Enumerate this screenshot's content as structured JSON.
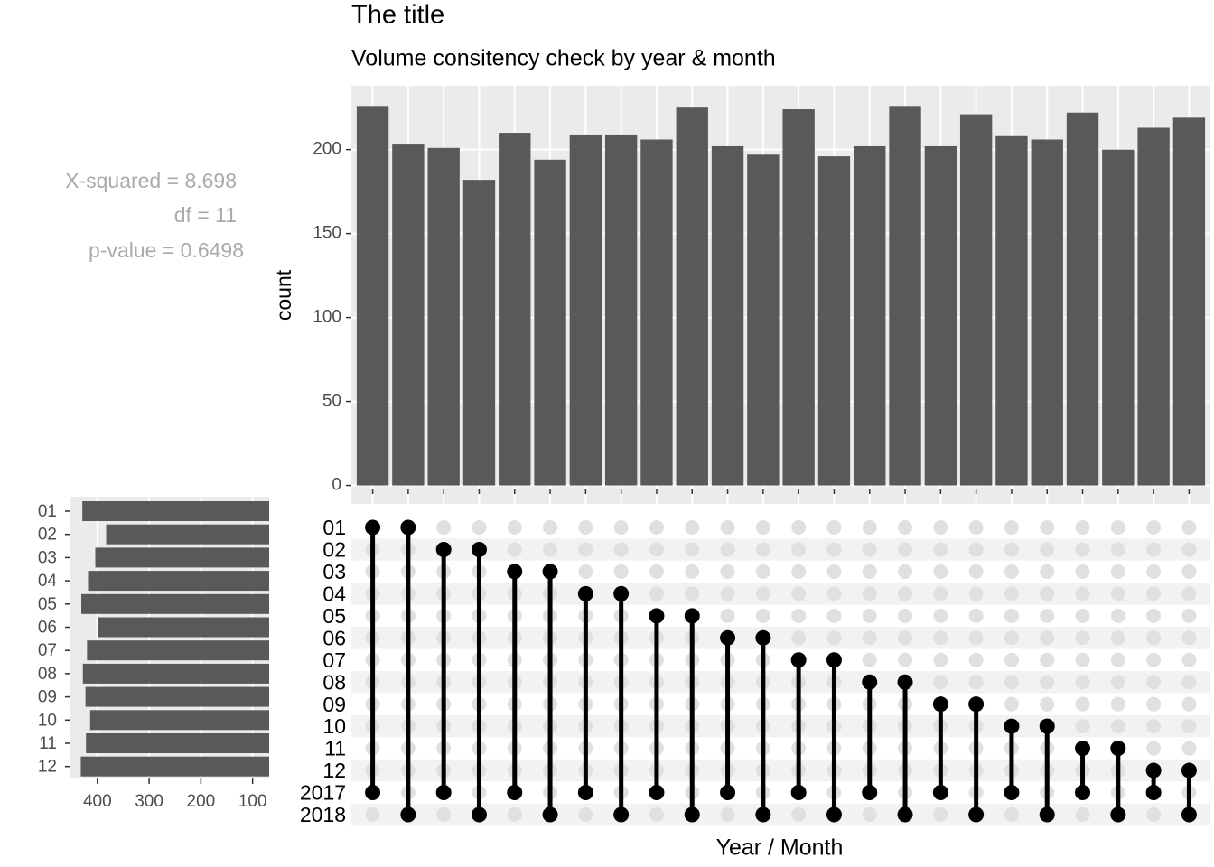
{
  "chart_data": [
    {
      "type": "bar",
      "title": "The title",
      "subtitle": "Volume consitency check by year & month",
      "ylabel": "count",
      "xlabel": "Year / Month",
      "annotations": [
        "X-squared =  8.698",
        "df =  11",
        "p-value =  0.6498"
      ],
      "values": [
        226,
        203,
        201,
        182,
        210,
        194,
        209,
        209,
        206,
        225,
        202,
        197,
        224,
        196,
        202,
        226,
        202,
        221,
        208,
        206,
        222,
        200,
        213,
        219
      ],
      "color": "#595959",
      "ylim": [
        -11,
        238
      ],
      "yticks": [
        0,
        50,
        100,
        150,
        200
      ],
      "grid": true
    },
    {
      "type": "matrix",
      "sets": [
        "01",
        "02",
        "03",
        "04",
        "05",
        "06",
        "07",
        "08",
        "09",
        "10",
        "11",
        "12",
        "2017",
        "2018"
      ],
      "intersections": [
        [
          "01",
          "2017"
        ],
        [
          "01",
          "2018"
        ],
        [
          "02",
          "2017"
        ],
        [
          "02",
          "2018"
        ],
        [
          "03",
          "2017"
        ],
        [
          "03",
          "2018"
        ],
        [
          "04",
          "2017"
        ],
        [
          "04",
          "2018"
        ],
        [
          "05",
          "2017"
        ],
        [
          "05",
          "2018"
        ],
        [
          "06",
          "2017"
        ],
        [
          "06",
          "2018"
        ],
        [
          "07",
          "2017"
        ],
        [
          "07",
          "2018"
        ],
        [
          "08",
          "2017"
        ],
        [
          "08",
          "2018"
        ],
        [
          "09",
          "2017"
        ],
        [
          "09",
          "2018"
        ],
        [
          "10",
          "2017"
        ],
        [
          "10",
          "2018"
        ],
        [
          "11",
          "2017"
        ],
        [
          "11",
          "2018"
        ],
        [
          "12",
          "2017"
        ],
        [
          "12",
          "2018"
        ]
      ]
    },
    {
      "type": "hbar",
      "categories": [
        "01",
        "02",
        "03",
        "04",
        "05",
        "06",
        "07",
        "08",
        "09",
        "10",
        "11",
        "12"
      ],
      "values": [
        429,
        383,
        404,
        418,
        431,
        399,
        420,
        428,
        423,
        414,
        422,
        432
      ],
      "color": "#595959",
      "xlim": [
        452,
        68
      ],
      "xticks": [
        400,
        300,
        200,
        100
      ],
      "grid": true
    }
  ]
}
